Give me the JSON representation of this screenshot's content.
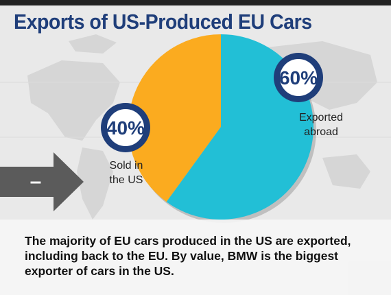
{
  "title": "Exports of US-Produced EU Cars",
  "footer_text": "The majority of EU cars produced in the US are exported, including back to the EU. By value, BMW is the biggest exporter of cars in the US.",
  "arrow_symbol": "–",
  "colors": {
    "sold": "#fbab1f",
    "exported": "#22bfd6",
    "title": "#1f3e7a",
    "badge_ring": "#1f3e7a"
  },
  "chart_data": {
    "type": "pie",
    "title": "Exports of US-Produced EU Cars",
    "slices": [
      {
        "label_lines": [
          "Sold in",
          "the US"
        ],
        "value": 40,
        "value_label": "40%",
        "color": "#fbab1f"
      },
      {
        "label_lines": [
          "Exported",
          "abroad"
        ],
        "value": 60,
        "value_label": "60%",
        "color": "#22bfd6"
      }
    ]
  }
}
